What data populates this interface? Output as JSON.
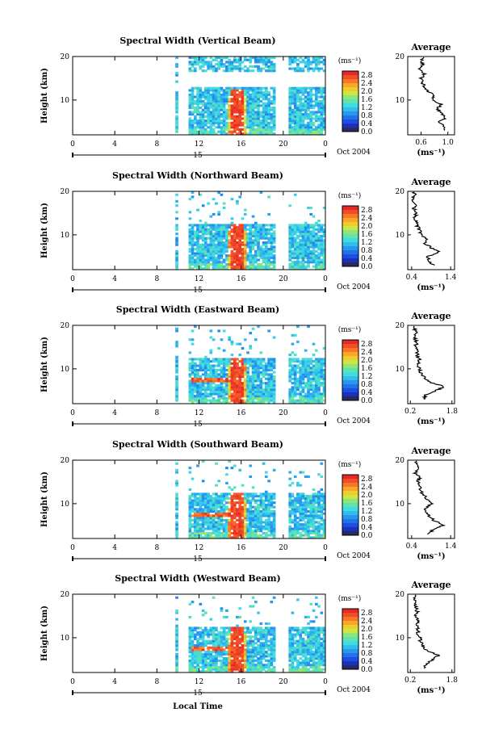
{
  "figure": {
    "xlabel": "Local Time",
    "date_label": "Oct 2004",
    "day_label": "15"
  },
  "chart_data": [
    {
      "type": "heatmap",
      "title": "Spectral Width (Vertical Beam)",
      "ylabel": "Height (km)",
      "x_ticks": [
        "0",
        "4",
        "8",
        "12",
        "16",
        "20",
        "0"
      ],
      "y_ticks": [
        "20",
        "10"
      ],
      "xlim": [
        0,
        24
      ],
      "ylim": [
        2,
        20
      ],
      "colorbar": {
        "unit": "(ms⁻¹)",
        "ticks": [
          "2.8",
          "2.4",
          "2.0",
          "1.6",
          "1.2",
          "0.8",
          "0.4",
          "0.0"
        ],
        "range": [
          0,
          3
        ]
      },
      "average": {
        "title": "Average",
        "unit": "(ms⁻¹)",
        "x_ticks": [
          "0.6",
          "1.0"
        ],
        "y_ticks": [
          "20",
          "10"
        ],
        "xlim": [
          0.4,
          1.1
        ],
        "ylim": [
          2,
          20
        ],
        "profile": [
          [
            0.92,
            3
          ],
          [
            0.95,
            4
          ],
          [
            0.88,
            5
          ],
          [
            0.97,
            6
          ],
          [
            0.9,
            7
          ],
          [
            0.85,
            8
          ],
          [
            0.9,
            9
          ],
          [
            0.75,
            10
          ],
          [
            0.8,
            11
          ],
          [
            0.7,
            12
          ],
          [
            0.66,
            13
          ],
          [
            0.62,
            14
          ],
          [
            0.6,
            15
          ],
          [
            0.65,
            16
          ],
          [
            0.58,
            17
          ],
          [
            0.62,
            18
          ],
          [
            0.6,
            19
          ],
          [
            0.63,
            20
          ]
        ]
      },
      "hotspot_time": 15.5
    },
    {
      "type": "heatmap",
      "title": "Spectral Width (Northward Beam)",
      "ylabel": "Height (km)",
      "x_ticks": [
        "0",
        "4",
        "8",
        "12",
        "16",
        "20",
        "0"
      ],
      "y_ticks": [
        "20",
        "10"
      ],
      "xlim": [
        0,
        24
      ],
      "ylim": [
        2,
        20
      ],
      "colorbar": {
        "unit": "(ms⁻¹)",
        "ticks": [
          "2.8",
          "2.4",
          "2.0",
          "1.6",
          "1.2",
          "0.8",
          "0.4",
          "0.0"
        ],
        "range": [
          0,
          3
        ]
      },
      "average": {
        "title": "Average",
        "unit": "(ms⁻¹)",
        "x_ticks": [
          "0.4",
          "1.4"
        ],
        "y_ticks": [
          "20",
          "10"
        ],
        "xlim": [
          0.3,
          1.5
        ],
        "ylim": [
          2,
          20
        ],
        "profile": [
          [
            0.95,
            3
          ],
          [
            0.85,
            4
          ],
          [
            0.8,
            5
          ],
          [
            1.1,
            6
          ],
          [
            0.9,
            7
          ],
          [
            0.75,
            8
          ],
          [
            0.8,
            9
          ],
          [
            0.65,
            10
          ],
          [
            0.6,
            11
          ],
          [
            0.55,
            12
          ],
          [
            0.5,
            13
          ],
          [
            0.48,
            14
          ],
          [
            0.52,
            15
          ],
          [
            0.45,
            16
          ],
          [
            0.5,
            17
          ],
          [
            0.42,
            18
          ],
          [
            0.48,
            19
          ],
          [
            0.45,
            20
          ]
        ]
      },
      "hotspot_time": 15.5
    },
    {
      "type": "heatmap",
      "title": "Spectral Width (Eastward Beam)",
      "ylabel": "Height (km)",
      "x_ticks": [
        "0",
        "4",
        "8",
        "12",
        "16",
        "20",
        "0"
      ],
      "y_ticks": [
        "20",
        "10"
      ],
      "xlim": [
        0,
        24
      ],
      "ylim": [
        2,
        20
      ],
      "colorbar": {
        "unit": "(ms⁻¹)",
        "ticks": [
          "2.8",
          "2.4",
          "2.0",
          "1.6",
          "1.2",
          "0.8",
          "0.4",
          "0.0"
        ],
        "range": [
          0,
          3
        ]
      },
      "average": {
        "title": "Average",
        "unit": "(ms⁻¹)",
        "x_ticks": [
          "0.2",
          "1.8"
        ],
        "y_ticks": [
          "20",
          "10"
        ],
        "xlim": [
          0.1,
          1.9
        ],
        "ylim": [
          2,
          20
        ],
        "profile": [
          [
            0.7,
            3
          ],
          [
            0.8,
            4
          ],
          [
            1.2,
            5
          ],
          [
            1.5,
            6
          ],
          [
            0.9,
            7
          ],
          [
            0.75,
            8
          ],
          [
            0.6,
            9
          ],
          [
            0.55,
            10
          ],
          [
            0.5,
            11
          ],
          [
            0.55,
            12
          ],
          [
            0.45,
            13
          ],
          [
            0.5,
            14
          ],
          [
            0.4,
            15
          ],
          [
            0.45,
            16
          ],
          [
            0.38,
            17
          ],
          [
            0.42,
            18
          ],
          [
            0.36,
            19
          ],
          [
            0.4,
            20
          ]
        ]
      },
      "hotspot_time": 15.5
    },
    {
      "type": "heatmap",
      "title": "Spectral Width (Southward Beam)",
      "ylabel": "Height (km)",
      "x_ticks": [
        "0",
        "4",
        "8",
        "12",
        "16",
        "20",
        "0"
      ],
      "y_ticks": [
        "20",
        "10"
      ],
      "xlim": [
        0,
        24
      ],
      "ylim": [
        2,
        20
      ],
      "colorbar": {
        "unit": "(ms⁻¹)",
        "ticks": [
          "2.8",
          "2.4",
          "2.0",
          "1.6",
          "1.2",
          "0.8",
          "0.4",
          "0.0"
        ],
        "range": [
          0,
          3
        ]
      },
      "average": {
        "title": "Average",
        "unit": "(ms⁻¹)",
        "x_ticks": [
          "0.4",
          "1.4"
        ],
        "y_ticks": [
          "20",
          "10"
        ],
        "xlim": [
          0.3,
          1.5
        ],
        "ylim": [
          2,
          20
        ],
        "profile": [
          [
            0.8,
            3
          ],
          [
            0.95,
            4
          ],
          [
            1.2,
            5
          ],
          [
            1.0,
            6
          ],
          [
            0.85,
            7
          ],
          [
            0.8,
            8
          ],
          [
            0.75,
            9
          ],
          [
            0.9,
            10
          ],
          [
            0.8,
            11
          ],
          [
            0.7,
            12
          ],
          [
            0.65,
            13
          ],
          [
            0.6,
            14
          ],
          [
            0.55,
            15
          ],
          [
            0.6,
            16
          ],
          [
            0.5,
            17
          ],
          [
            0.58,
            18
          ],
          [
            0.52,
            19
          ],
          [
            0.55,
            20
          ]
        ]
      },
      "hotspot_time": 15.5
    },
    {
      "type": "heatmap",
      "title": "Spectral Width (Westward Beam)",
      "ylabel": "Height (km)",
      "x_ticks": [
        "0",
        "4",
        "8",
        "12",
        "16",
        "20",
        "0"
      ],
      "y_ticks": [
        "20",
        "10"
      ],
      "xlim": [
        0,
        24
      ],
      "ylim": [
        2,
        20
      ],
      "colorbar": {
        "unit": "(ms⁻¹)",
        "ticks": [
          "2.8",
          "2.4",
          "2.0",
          "1.6",
          "1.2",
          "0.8",
          "0.4",
          "0.0"
        ],
        "range": [
          0,
          3
        ]
      },
      "average": {
        "title": "Average",
        "unit": "(ms⁻¹)",
        "x_ticks": [
          "0.2",
          "1.8"
        ],
        "y_ticks": [
          "20",
          "10"
        ],
        "xlim": [
          0.1,
          1.9
        ],
        "ylim": [
          2,
          20
        ],
        "profile": [
          [
            0.7,
            3
          ],
          [
            0.8,
            4
          ],
          [
            1.1,
            5
          ],
          [
            1.3,
            6
          ],
          [
            0.85,
            7
          ],
          [
            0.7,
            8
          ],
          [
            0.6,
            9
          ],
          [
            0.55,
            10
          ],
          [
            0.5,
            11
          ],
          [
            0.5,
            12
          ],
          [
            0.45,
            13
          ],
          [
            0.5,
            14
          ],
          [
            0.42,
            15
          ],
          [
            0.46,
            16
          ],
          [
            0.4,
            17
          ],
          [
            0.44,
            18
          ],
          [
            0.38,
            19
          ],
          [
            0.42,
            20
          ]
        ]
      },
      "hotspot_time": 15.5
    }
  ]
}
